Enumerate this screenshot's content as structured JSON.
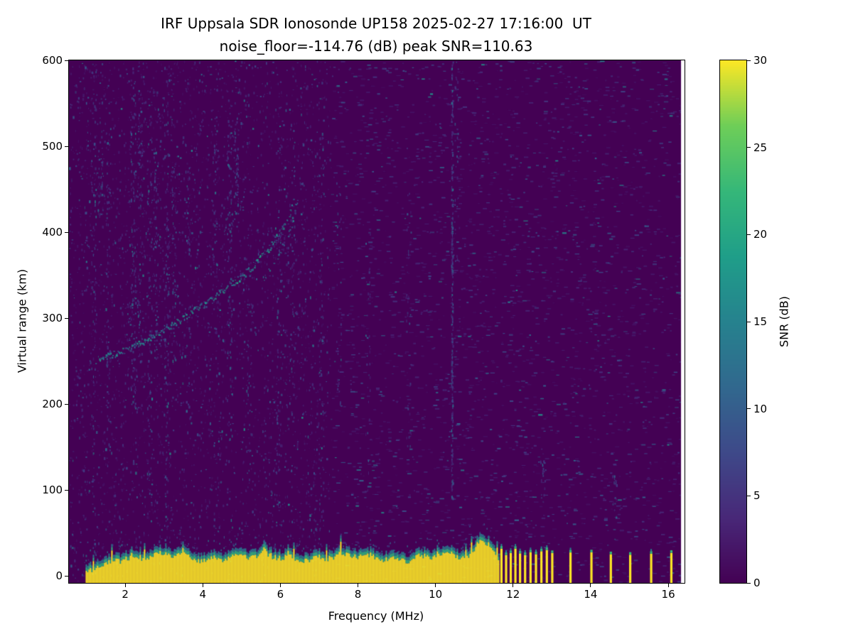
{
  "chart_data": {
    "type": "heatmap",
    "title_line1": "IRF Uppsala SDR Ionosonde UP158 2025-02-27 17:16:00  UT",
    "title_line2": "noise_floor=-114.76 (dB) peak SNR=110.63",
    "xlabel": "Frequency (MHz)",
    "ylabel": "Virtual range (km)",
    "xlim": [
      0.55,
      16.42
    ],
    "ylim": [
      -8,
      600
    ],
    "xticks": [
      2,
      4,
      6,
      8,
      10,
      12,
      14,
      16
    ],
    "yticks": [
      0,
      100,
      200,
      300,
      400,
      500,
      600
    ],
    "data_x_end": 16.33,
    "background_value_color": "#440154",
    "colorbar": {
      "label": "SNR (dB)",
      "vmin": 0,
      "vmax": 30,
      "ticks": [
        0,
        5,
        10,
        15,
        20,
        25,
        30
      ],
      "colormap": "viridis",
      "colormap_stops": [
        [
          0.0,
          "#440154"
        ],
        [
          0.125,
          "#482878"
        ],
        [
          0.25,
          "#3e4989"
        ],
        [
          0.375,
          "#31688e"
        ],
        [
          0.5,
          "#26828e"
        ],
        [
          0.625,
          "#1f9e89"
        ],
        [
          0.75,
          "#35b779"
        ],
        [
          0.875,
          "#6ece58"
        ],
        [
          1.0,
          "#fde725"
        ]
      ]
    },
    "noise": {
      "seed": 42,
      "speckle_count": 9500,
      "left_right_boundary_mhz": 7.3,
      "right_density": 0.55
    },
    "noise_columns": [
      {
        "x": 1.18,
        "y0": 0,
        "y1": 600,
        "n": 90
      },
      {
        "x": 1.35,
        "y0": 420,
        "y1": 500,
        "n": 35
      },
      {
        "x": 1.55,
        "y0": 150,
        "y1": 560,
        "n": 55
      },
      {
        "x": 2.2,
        "y0": 200,
        "y1": 580,
        "n": 110
      },
      {
        "x": 2.38,
        "y0": 250,
        "y1": 560,
        "n": 70
      },
      {
        "x": 2.62,
        "y0": 60,
        "y1": 540,
        "n": 85
      },
      {
        "x": 2.78,
        "y0": 250,
        "y1": 500,
        "n": 65
      },
      {
        "x": 3.05,
        "y0": 40,
        "y1": 590,
        "n": 110
      },
      {
        "x": 3.25,
        "y0": 250,
        "y1": 480,
        "n": 55
      },
      {
        "x": 3.6,
        "y0": 380,
        "y1": 480,
        "n": 28
      },
      {
        "x": 4.3,
        "y0": 300,
        "y1": 560,
        "n": 45
      },
      {
        "x": 4.68,
        "y0": 150,
        "y1": 520,
        "n": 80
      },
      {
        "x": 4.85,
        "y0": 420,
        "y1": 520,
        "n": 45
      },
      {
        "x": 5.2,
        "y0": 100,
        "y1": 400,
        "n": 38
      },
      {
        "x": 5.95,
        "y0": 60,
        "y1": 420,
        "n": 60
      },
      {
        "x": 6.3,
        "y0": 120,
        "y1": 540,
        "n": 55
      },
      {
        "x": 7.05,
        "y0": 60,
        "y1": 520,
        "n": 70
      },
      {
        "x": 7.5,
        "y0": 200,
        "y1": 460,
        "n": 35
      },
      {
        "x": 8.25,
        "y0": 100,
        "y1": 400,
        "n": 35
      },
      {
        "x": 9.3,
        "y0": 150,
        "y1": 450,
        "n": 35
      },
      {
        "x": 10.42,
        "y0": 90,
        "y1": 600,
        "n": 300,
        "jx": 0.02
      },
      {
        "x": 10.55,
        "y0": 350,
        "y1": 600,
        "n": 35
      },
      {
        "x": 12.75,
        "y0": 80,
        "y1": 140,
        "n": 22
      },
      {
        "x": 14.6,
        "y0": 60,
        "y1": 120,
        "n": 18
      }
    ],
    "echo_trace": {
      "main": [
        [
          1.3,
          253
        ],
        [
          1.8,
          260
        ],
        [
          2.4,
          272
        ],
        [
          3.0,
          288
        ],
        [
          3.6,
          305
        ],
        [
          4.2,
          322
        ],
        [
          4.8,
          342
        ],
        [
          5.3,
          362
        ],
        [
          5.7,
          382
        ],
        [
          6.0,
          402
        ],
        [
          6.2,
          420
        ],
        [
          6.35,
          438
        ]
      ],
      "secondary": [
        [
          5.55,
          345
        ],
        [
          5.8,
          360
        ],
        [
          6.0,
          378
        ],
        [
          6.15,
          395
        ],
        [
          6.3,
          415
        ],
        [
          6.45,
          440
        ]
      ],
      "upper_scatter": [
        [
          2.1,
          300
        ],
        [
          2.3,
          315
        ],
        [
          2.6,
          330
        ],
        [
          3.1,
          345
        ],
        [
          3.3,
          330
        ],
        [
          4.6,
          400
        ],
        [
          4.75,
          415
        ],
        [
          5.0,
          430
        ]
      ]
    },
    "ground_band": {
      "x0": 0.98,
      "x1": 11.62,
      "base_top_km": 26,
      "bump": {
        "x0": 10.9,
        "x1": 11.58,
        "extra_km": 22
      }
    },
    "pulse_bars": [
      11.7,
      11.82,
      11.94,
      12.06,
      12.18,
      12.31,
      12.45,
      12.59,
      12.73,
      12.87,
      13.01,
      13.48,
      14.02,
      14.52,
      15.02,
      15.56,
      16.08
    ],
    "pulse_bar_top_km": 30
  }
}
